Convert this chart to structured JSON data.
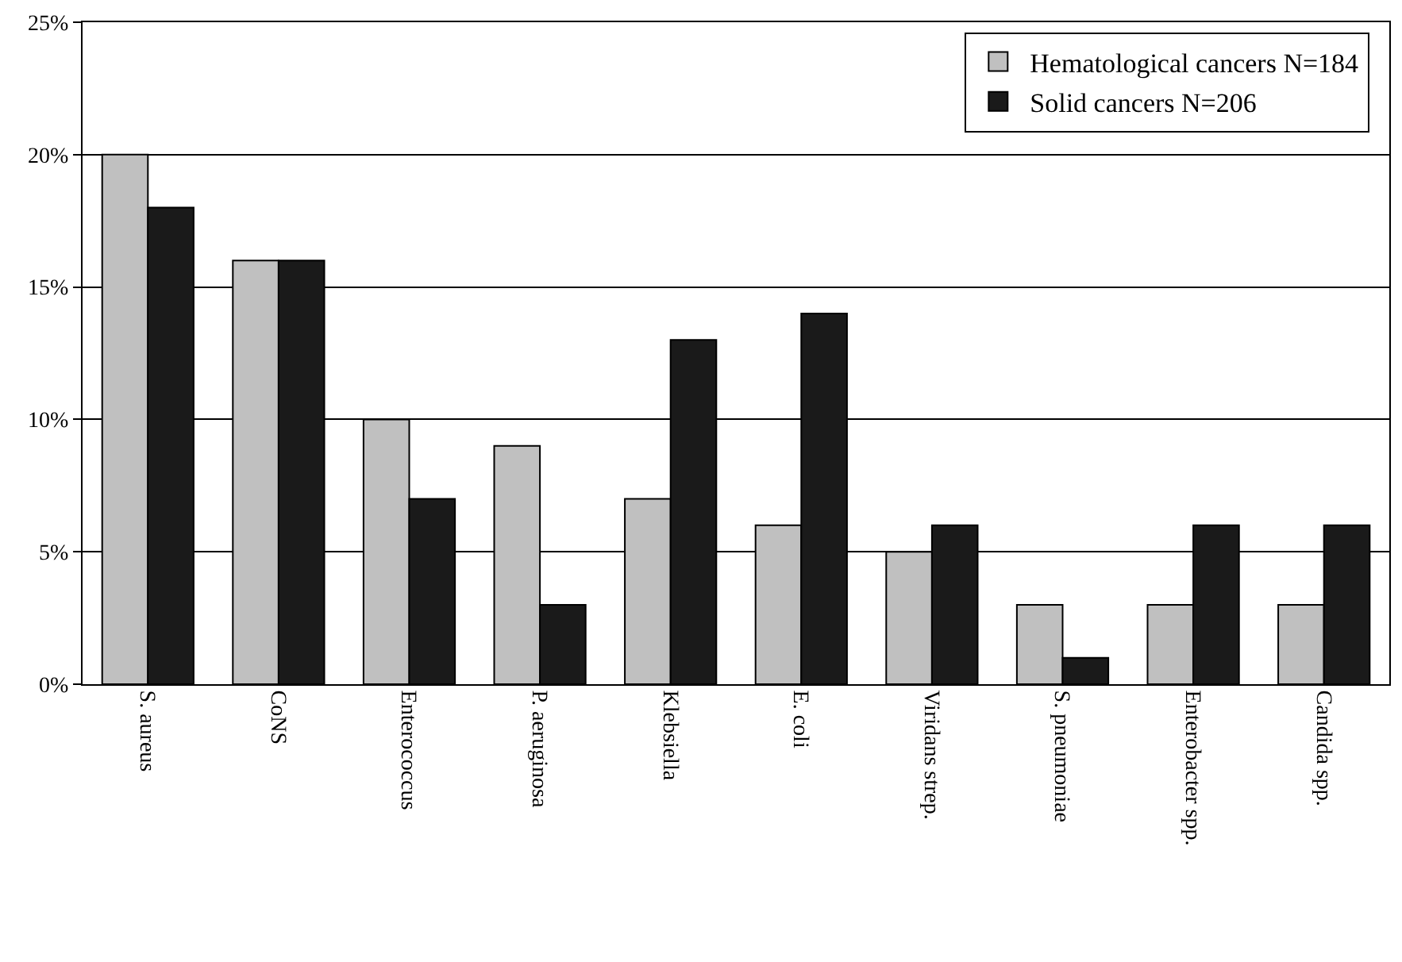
{
  "chart_data": {
    "type": "bar",
    "categories": [
      "S. aureus",
      "CoNS",
      "Enterococcus",
      "P. aeruginosa",
      "Klebsiella",
      "E. coli",
      "Viridans strep.",
      "S. pneumoniae",
      "Enterobacter spp.",
      "Candida spp."
    ],
    "series": [
      {
        "name": "Hematological cancers N=184",
        "color": "#c0c0c0",
        "values": [
          20,
          16,
          10,
          9,
          7,
          6,
          5,
          3,
          3,
          3
        ]
      },
      {
        "name": "Solid cancers N=206",
        "color": "#1a1a1a",
        "values": [
          18,
          16,
          7,
          3,
          13,
          14,
          6,
          1,
          6,
          6
        ]
      }
    ],
    "ylim": [
      0,
      25
    ],
    "yticks": [
      {
        "value": 0,
        "label": "0%"
      },
      {
        "value": 5,
        "label": "5%"
      },
      {
        "value": 10,
        "label": "10%"
      },
      {
        "value": 15,
        "label": "15%"
      },
      {
        "value": 20,
        "label": "20%"
      },
      {
        "value": 25,
        "label": "25%"
      }
    ],
    "grid": "y",
    "legend": "top right"
  }
}
